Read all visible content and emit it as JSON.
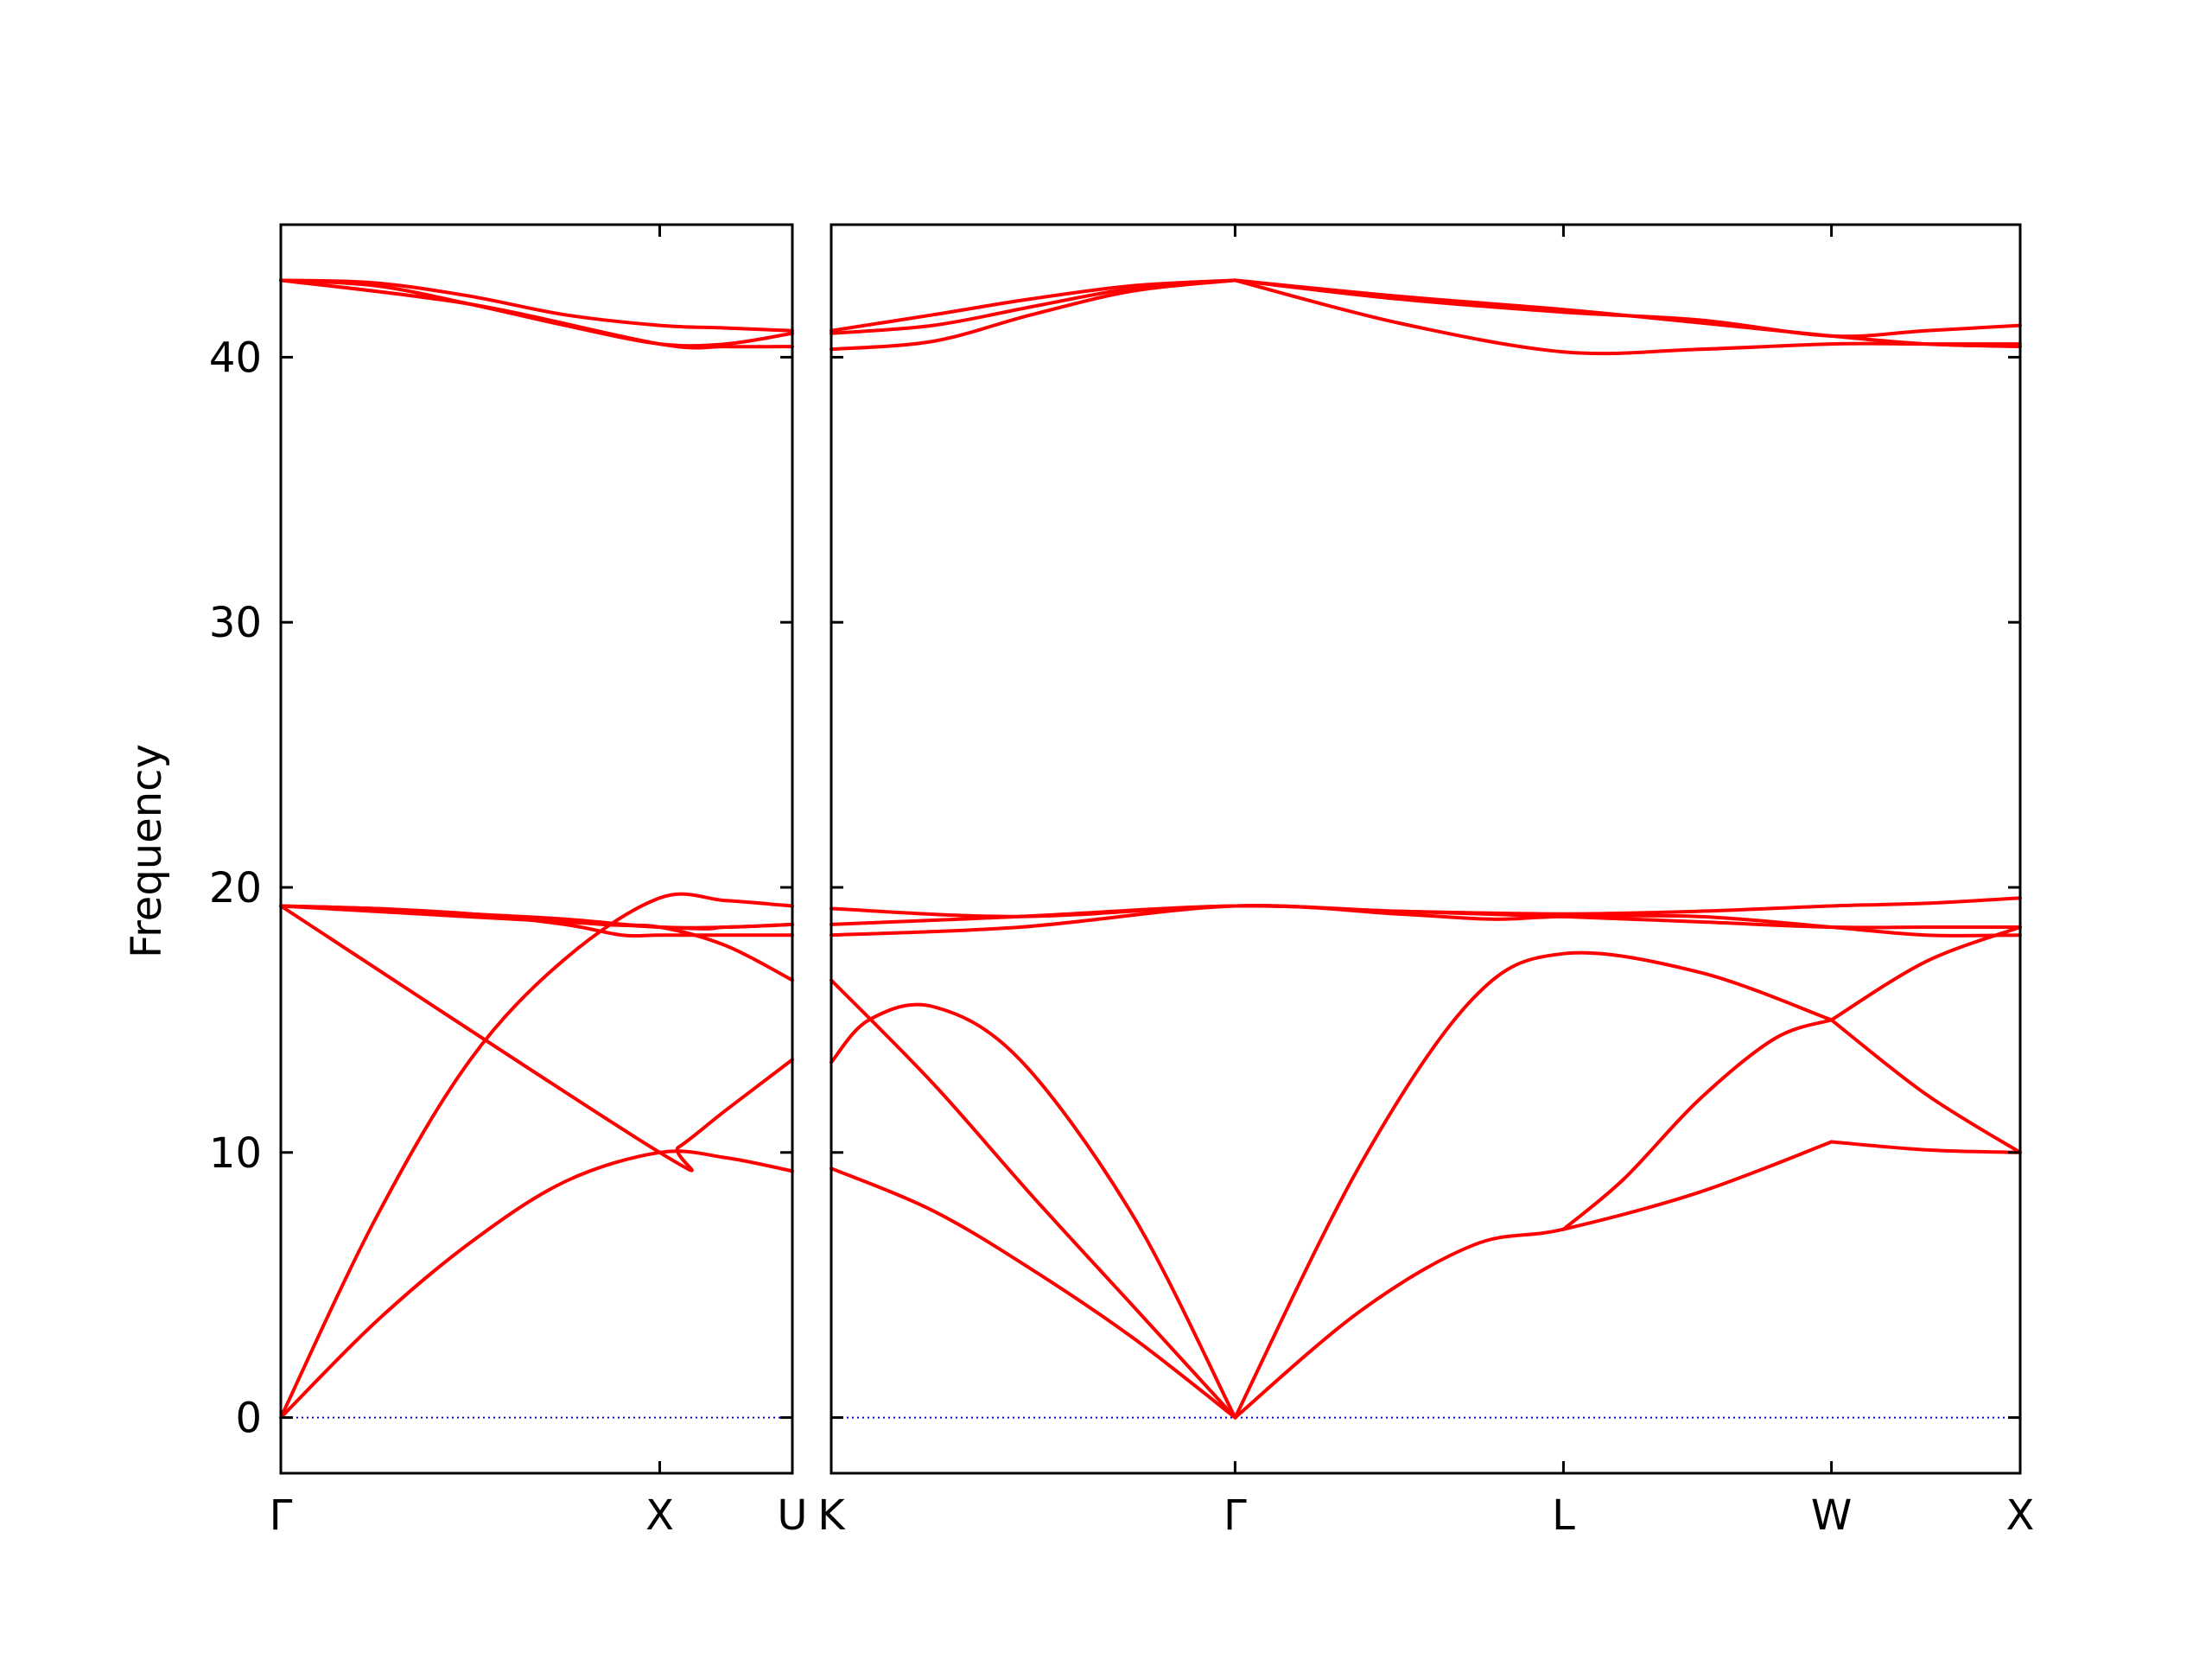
{
  "chart_data": {
    "type": "line",
    "title": "",
    "xlabel": "",
    "ylabel": "Frequency",
    "ylim": [
      -2.1,
      45
    ],
    "yticks": [
      0,
      10,
      20,
      30,
      40
    ],
    "grid": false,
    "legend": "none",
    "colors": {
      "band": "#ff0000",
      "zero_line": "#0000cc",
      "axes": "#000000"
    },
    "panels": [
      {
        "name": "Γ-X-U",
        "x_range": [
          0,
          1.35
        ],
        "high_symmetry_points": [
          {
            "label": "Γ",
            "x": 0
          },
          {
            "label": "X",
            "x": 1.0
          },
          {
            "label": "U",
            "x": 1.35
          }
        ],
        "series": [
          {
            "x": [
              0,
              0.25,
              0.5,
              0.75,
              1.0,
              1.175,
              1.35
            ],
            "values": [
              0,
              3.6,
              6.6,
              8.9,
              10.0,
              9.8,
              9.3
            ]
          },
          {
            "x": [
              0,
              0.25,
              0.5,
              0.75,
              1.0,
              1.175,
              1.35
            ],
            "values": [
              0,
              7.5,
              13.5,
              17.3,
              19.6,
              19.5,
              19.3
            ]
          },
          {
            "x": [
              0,
              0.25,
              0.5,
              0.75,
              0.9,
              1.0,
              1.175,
              1.35
            ],
            "values": [
              19.3,
              19.2,
              19.0,
              18.6,
              18.2,
              18.2,
              18.2,
              18.2
            ]
          },
          {
            "x": [
              0,
              0.25,
              0.5,
              0.75,
              1.0,
              1.175,
              1.35
            ],
            "values": [
              19.3,
              19.2,
              19.0,
              18.8,
              18.5,
              18.5,
              18.6
            ]
          },
          {
            "x": [
              0,
              0.5,
              0.85,
              1.0,
              1.175,
              1.35
            ],
            "values": [
              19.3,
              19.0,
              18.6,
              18.5,
              17.8,
              16.5
            ]
          },
          {
            "x": [
              0,
              1.0,
              1.175,
              1.35
            ],
            "values": [
              19.3,
              18.5,
              18.5,
              18.6
            ]
          },
          {
            "x": [
              0,
              1.0,
              1.05,
              1.175,
              1.35
            ],
            "values": [
              19.3,
              10.0,
              10.2,
              11.6,
              13.5
            ]
          },
          {
            "x": [
              0,
              0.25,
              0.5,
              0.75,
              1.0,
              1.175,
              1.35
            ],
            "values": [
              42.9,
              42.7,
              42.0,
              41.2,
              40.5,
              40.5,
              40.9
            ]
          },
          {
            "x": [
              0,
              0.25,
              0.5,
              0.75,
              1.0,
              1.175,
              1.35
            ],
            "values": [
              42.9,
              42.8,
              42.3,
              41.6,
              41.2,
              41.1,
              41.0
            ]
          },
          {
            "x": [
              0,
              0.5,
              1.0,
              1.175,
              1.35
            ],
            "values": [
              42.9,
              42.0,
              40.5,
              40.4,
              40.4
            ]
          }
        ]
      },
      {
        "name": "K-Γ-L-W-X",
        "x_range": [
          0,
          3.15
        ],
        "high_symmetry_points": [
          {
            "label": "K",
            "x": 0
          },
          {
            "label": "Γ",
            "x": 1.07
          },
          {
            "label": "L",
            "x": 1.94
          },
          {
            "label": "W",
            "x": 2.65
          },
          {
            "label": "X",
            "x": 3.15
          }
        ],
        "series": [
          {
            "x": [
              0,
              0.27,
              0.53,
              0.8,
              1.07
            ],
            "values": [
              9.4,
              7.8,
              5.6,
              3.0,
              0
            ]
          },
          {
            "x": [
              0,
              0.27,
              0.53,
              0.8,
              1.07
            ],
            "values": [
              16.5,
              12.6,
              8.4,
              4.2,
              0
            ]
          },
          {
            "x": [
              0,
              0.1,
              0.27,
              0.5,
              0.8,
              1.07
            ],
            "values": [
              13.4,
              15.0,
              15.5,
              13.5,
              7.6,
              0
            ]
          },
          {
            "x": [
              0,
              0.5,
              1.07,
              1.5,
              1.75,
              1.94,
              2.3,
              2.65,
              2.9,
              3.15
            ],
            "values": [
              18.2,
              18.5,
              19.3,
              19.0,
              18.8,
              18.9,
              18.9,
              18.5,
              18.2,
              18.2
            ]
          },
          {
            "x": [
              0,
              0.5,
              1.07,
              1.5,
              1.94,
              2.3,
              2.65,
              2.9,
              3.15
            ],
            "values": [
              18.6,
              18.9,
              19.3,
              19.1,
              18.9,
              18.7,
              18.5,
              18.5,
              18.5
            ]
          },
          {
            "x": [
              0,
              0.5,
              1.07,
              1.5,
              1.94,
              2.3,
              2.65,
              2.9,
              3.15
            ],
            "values": [
              19.2,
              18.9,
              19.3,
              19.1,
              19.0,
              19.1,
              19.3,
              19.4,
              19.6
            ]
          },
          {
            "x": [
              1.07,
              1.4,
              1.7,
              1.94,
              2.3,
              2.65
            ],
            "values": [
              0,
              9.5,
              15.8,
              17.5,
              16.8,
              15.0
            ]
          },
          {
            "x": [
              1.07,
              1.4,
              1.7,
              1.94,
              2.3,
              2.65
            ],
            "values": [
              0,
              4.0,
              6.5,
              7.1,
              8.5,
              10.4
            ]
          },
          {
            "x": [
              1.94,
              2.1,
              2.3,
              2.5,
              2.65
            ],
            "values": [
              7.1,
              9.0,
              12.0,
              14.3,
              15.0
            ]
          },
          {
            "x": [
              2.65,
              2.9,
              3.15
            ],
            "values": [
              10.4,
              10.1,
              10.0
            ]
          },
          {
            "x": [
              2.65,
              2.9,
              3.15
            ],
            "values": [
              15.0,
              12.2,
              10.0
            ]
          },
          {
            "x": [
              2.65,
              2.9,
              3.15
            ],
            "values": [
              15.0,
              17.2,
              18.5
            ]
          },
          {
            "x": [
              0,
              0.27,
              0.53,
              0.8,
              1.07
            ],
            "values": [
              40.3,
              40.6,
              41.6,
              42.5,
              42.9
            ]
          },
          {
            "x": [
              0,
              0.27,
              0.53,
              0.8,
              1.07
            ],
            "values": [
              41.0,
              41.6,
              42.2,
              42.7,
              42.9
            ]
          },
          {
            "x": [
              0,
              0.27,
              0.53,
              0.8,
              1.07
            ],
            "values": [
              40.9,
              41.2,
              41.9,
              42.6,
              42.9
            ]
          },
          {
            "x": [
              1.07,
              1.5,
              1.94,
              2.3,
              2.65,
              2.9,
              3.15
            ],
            "values": [
              42.9,
              41.3,
              40.2,
              40.3,
              40.5,
              40.5,
              40.5
            ]
          },
          {
            "x": [
              1.07,
              1.5,
              1.94,
              2.3,
              2.65,
              2.9,
              3.15
            ],
            "values": [
              42.9,
              42.3,
              41.8,
              41.3,
              40.8,
              40.5,
              40.4
            ]
          },
          {
            "x": [
              1.07,
              1.5,
              1.94,
              2.3,
              2.65,
              2.9,
              3.15
            ],
            "values": [
              42.9,
              42.2,
              41.7,
              41.4,
              40.8,
              41.0,
              41.2
            ]
          }
        ]
      }
    ]
  }
}
